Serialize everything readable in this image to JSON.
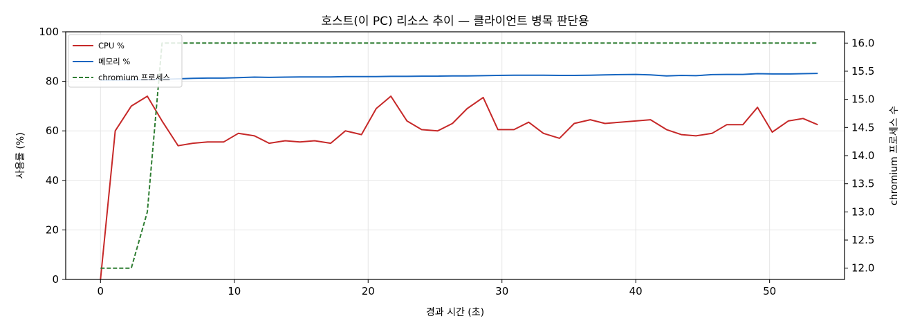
{
  "chart_data": {
    "type": "line",
    "title": "호스트(이 PC) 리소스 추이 — 클라이언트 병목 판단용",
    "xlabel": "경과 시간 (초)",
    "ylabel": "사용률 (%)",
    "y2label": "chromium 프로세스 수",
    "xlim": [
      -2.6,
      55.6
    ],
    "ylim": [
      0,
      100
    ],
    "y2lim": [
      11.8,
      16.2
    ],
    "xticks": [
      0,
      10,
      20,
      30,
      40,
      50
    ],
    "yticks": [
      0,
      20,
      40,
      60,
      80,
      100
    ],
    "y2ticks": [
      "12.0",
      "12.5",
      "13.0",
      "13.5",
      "14.0",
      "14.5",
      "15.0",
      "15.5",
      "16.0"
    ],
    "grid": true,
    "legend_position": "upper-left",
    "series": [
      {
        "name": "CPU %",
        "axis": "left",
        "color": "#c62828",
        "style": "solid",
        "x": [
          0,
          1.1,
          2.3,
          3.5,
          4.6,
          5.8,
          6.9,
          8.0,
          9.2,
          10.3,
          11.5,
          12.6,
          13.8,
          14.9,
          16.0,
          17.2,
          18.3,
          19.5,
          20.6,
          21.7,
          22.9,
          24.0,
          25.2,
          26.3,
          27.4,
          28.6,
          29.7,
          30.9,
          32.0,
          33.1,
          34.3,
          35.4,
          36.6,
          37.7,
          38.8,
          40.0,
          41.1,
          42.3,
          43.4,
          44.5,
          45.7,
          46.8,
          48.0,
          49.1,
          50.2,
          51.4,
          52.5,
          53.6
        ],
        "values": [
          0,
          60,
          70,
          74,
          64,
          54,
          55,
          55.5,
          55.5,
          59,
          58,
          55,
          56,
          55.5,
          56,
          55,
          60,
          58.5,
          69,
          74,
          64,
          60.5,
          60,
          63,
          69,
          73.5,
          60.5,
          60.5,
          63.5,
          59,
          57,
          63,
          64.5,
          63,
          63.5,
          64,
          64.5,
          60.5,
          58.5,
          58,
          59,
          62.5,
          62.5,
          69.5,
          59.5,
          64,
          65,
          62.5
        ]
      },
      {
        "name": "메모리 %",
        "axis": "left",
        "color": "#1565c0",
        "style": "solid",
        "x": [
          0,
          1.1,
          2.3,
          3.5,
          4.6,
          5.8,
          6.9,
          8.0,
          9.2,
          10.3,
          11.5,
          12.6,
          13.8,
          14.9,
          16.0,
          17.2,
          18.3,
          19.5,
          20.6,
          21.7,
          22.9,
          24.0,
          25.2,
          26.3,
          27.4,
          28.6,
          29.7,
          30.9,
          32.0,
          33.1,
          34.3,
          35.4,
          36.6,
          37.7,
          38.8,
          40.0,
          41.1,
          42.3,
          43.4,
          44.5,
          45.7,
          46.8,
          48.0,
          49.1,
          50.2,
          51.4,
          52.5,
          53.6
        ],
        "values": [
          80.5,
          80.5,
          80.6,
          80.7,
          80.8,
          81.0,
          81.2,
          81.3,
          81.3,
          81.5,
          81.7,
          81.6,
          81.7,
          81.8,
          81.8,
          81.8,
          81.9,
          81.9,
          81.9,
          82.0,
          82.0,
          82.1,
          82.1,
          82.2,
          82.2,
          82.3,
          82.4,
          82.5,
          82.5,
          82.5,
          82.4,
          82.4,
          82.5,
          82.6,
          82.7,
          82.8,
          82.6,
          82.2,
          82.4,
          82.3,
          82.7,
          82.8,
          82.8,
          83.1,
          83.0,
          83.0,
          83.1,
          83.2
        ]
      },
      {
        "name": "chromium 프로세스",
        "axis": "right",
        "color": "#2e7d32",
        "style": "dashed",
        "x": [
          0,
          1.1,
          2.3,
          3.5,
          4.6,
          5.8,
          6.9,
          8.0,
          9.2,
          10.3,
          11.5,
          12.6,
          13.8,
          14.9,
          16.0,
          17.2,
          18.3,
          19.5,
          20.6,
          21.7,
          22.9,
          24.0,
          25.2,
          26.3,
          27.4,
          28.6,
          29.7,
          30.9,
          32.0,
          33.1,
          34.3,
          35.4,
          36.6,
          37.7,
          38.8,
          40.0,
          41.1,
          42.3,
          43.4,
          44.5,
          45.7,
          46.8,
          48.0,
          49.1,
          50.2,
          51.4,
          52.5,
          53.6
        ],
        "values": [
          12,
          12,
          12,
          13,
          16,
          16,
          16,
          16,
          16,
          16,
          16,
          16,
          16,
          16,
          16,
          16,
          16,
          16,
          16,
          16,
          16,
          16,
          16,
          16,
          16,
          16,
          16,
          16,
          16,
          16,
          16,
          16,
          16,
          16,
          16,
          16,
          16,
          16,
          16,
          16,
          16,
          16,
          16,
          16,
          16,
          16,
          16,
          16
        ]
      }
    ]
  }
}
